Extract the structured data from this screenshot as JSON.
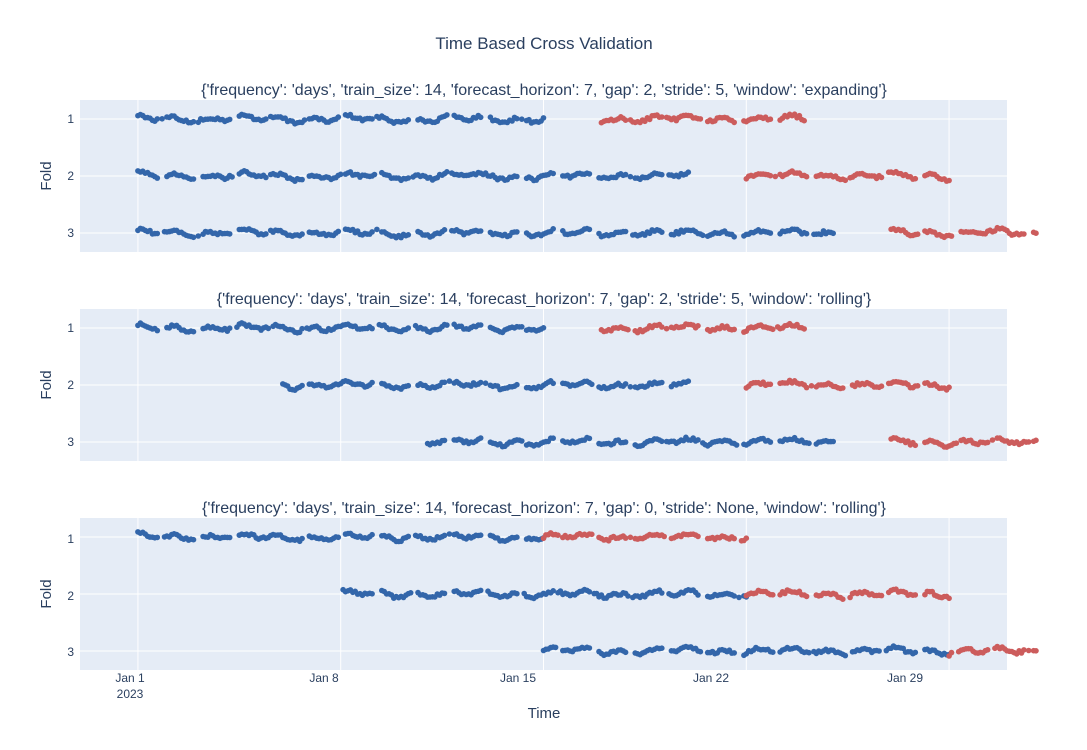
{
  "chart_data": {
    "type": "scatter",
    "title": "Time Based Cross Validation",
    "xlabel": "Time",
    "ylabel": "Fold",
    "x_tick_labels": [
      "Jan 1",
      "Jan 8",
      "Jan 15",
      "Jan 22",
      "Jan 29"
    ],
    "x_tick_dates": [
      "2023-01-01",
      "2023-01-08",
      "2023-01-15",
      "2023-01-22",
      "2023-01-29"
    ],
    "x_year_label": "2023",
    "xlim": [
      "2022-12-30",
      "2023-01-31"
    ],
    "y_tick_labels": [
      "1",
      "2",
      "3"
    ],
    "grid": true,
    "legend": "none",
    "colors": {
      "train": "#3366aa",
      "test": "#cc5c5c",
      "plot_bg": "#e5ecf6",
      "grid": "#ffffff",
      "text": "#2a3f5f"
    },
    "subplots": [
      {
        "subtitle": "{'frequency': 'days', 'train_size': 14, 'forecast_horizon': 7, 'gap': 2, 'stride': 5, 'window': 'expanding'}",
        "folds": [
          {
            "fold": "1",
            "train": [
              "2023-01-01",
              "2023-01-15"
            ],
            "test": [
              "2023-01-17",
              "2023-01-24"
            ]
          },
          {
            "fold": "2",
            "train": [
              "2023-01-01",
              "2023-01-20"
            ],
            "test": [
              "2023-01-22",
              "2023-01-29"
            ]
          },
          {
            "fold": "3",
            "train": [
              "2023-01-01",
              "2023-01-25"
            ],
            "test": [
              "2023-01-27",
              "2023-02-01"
            ]
          }
        ]
      },
      {
        "subtitle": "{'frequency': 'days', 'train_size': 14, 'forecast_horizon': 7, 'gap': 2, 'stride': 5, 'window': 'rolling'}",
        "folds": [
          {
            "fold": "1",
            "train": [
              "2023-01-01",
              "2023-01-15"
            ],
            "test": [
              "2023-01-17",
              "2023-01-24"
            ]
          },
          {
            "fold": "2",
            "train": [
              "2023-01-06",
              "2023-01-20"
            ],
            "test": [
              "2023-01-22",
              "2023-01-29"
            ]
          },
          {
            "fold": "3",
            "train": [
              "2023-01-11",
              "2023-01-25"
            ],
            "test": [
              "2023-01-27",
              "2023-02-01"
            ]
          }
        ]
      },
      {
        "subtitle": "{'frequency': 'days', 'train_size': 14, 'forecast_horizon': 7, 'gap': 0, 'stride': None, 'window': 'rolling'}",
        "folds": [
          {
            "fold": "1",
            "train": [
              "2023-01-01",
              "2023-01-15"
            ],
            "test": [
              "2023-01-15",
              "2023-01-22"
            ]
          },
          {
            "fold": "2",
            "train": [
              "2023-01-08",
              "2023-01-22"
            ],
            "test": [
              "2023-01-22",
              "2023-01-29"
            ]
          },
          {
            "fold": "3",
            "train": [
              "2023-01-15",
              "2023-01-29"
            ],
            "test": [
              "2023-01-29",
              "2023-02-01"
            ]
          }
        ]
      }
    ]
  }
}
